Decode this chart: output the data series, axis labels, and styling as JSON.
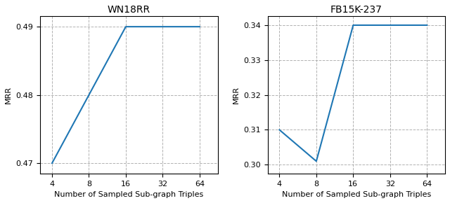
{
  "subplot1": {
    "title": "WN18RR",
    "x": [
      4,
      8,
      16,
      32,
      64
    ],
    "y": [
      0.47,
      0.48,
      0.49,
      0.49,
      0.49
    ],
    "xlabel": "Number of Sampled Sub-graph Triples",
    "ylabel": "MRR",
    "ylim": [
      0.4685,
      0.4915
    ],
    "yticks": [
      0.47,
      0.48,
      0.49
    ],
    "xticks": [
      4,
      8,
      16,
      32,
      64
    ]
  },
  "subplot2": {
    "title": "FB15K-237",
    "x": [
      4,
      8,
      16,
      32,
      64
    ],
    "y": [
      0.31,
      0.301,
      0.34,
      0.34,
      0.34
    ],
    "xlabel": "Number of Sampled Sub-graph Triples",
    "ylabel": "MRR",
    "ylim": [
      0.2975,
      0.3425
    ],
    "yticks": [
      0.3,
      0.31,
      0.32,
      0.33,
      0.34
    ],
    "xticks": [
      4,
      8,
      16,
      32,
      64
    ]
  },
  "line_color": "#1f77b4",
  "line_width": 1.5,
  "grid_color": "#aaaaaa",
  "grid_linestyle": "--",
  "grid_alpha": 0.9,
  "background_color": "#ffffff",
  "title_fontsize": 10,
  "label_fontsize": 8,
  "tick_fontsize": 8
}
